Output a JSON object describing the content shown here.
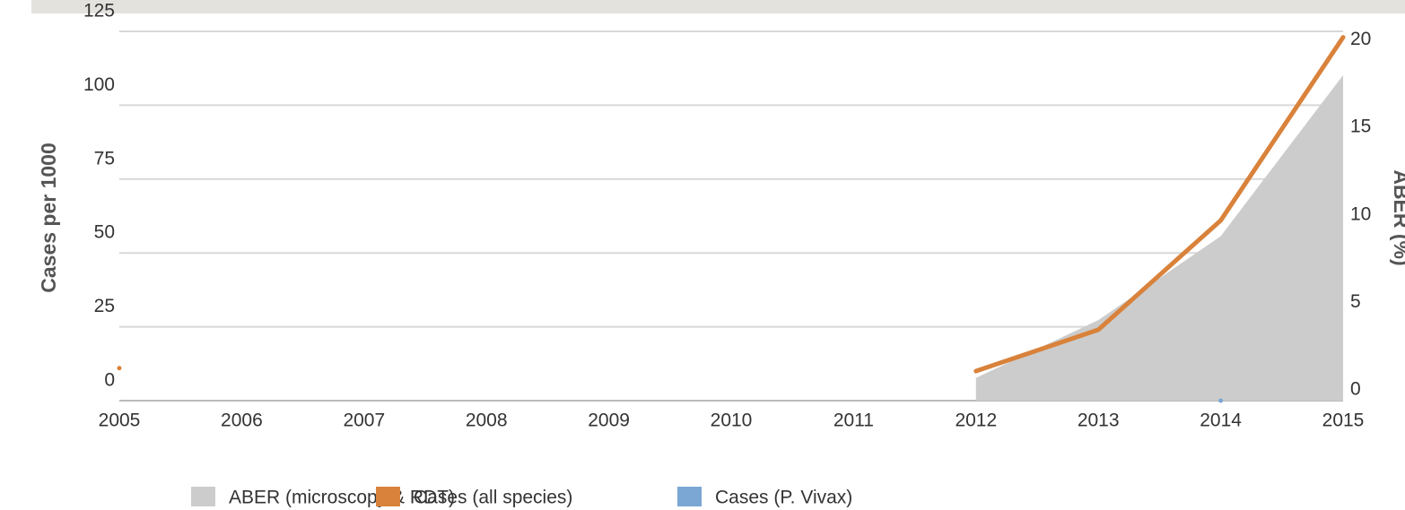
{
  "chart_data": {
    "type": "line",
    "x": [
      2005,
      2006,
      2007,
      2008,
      2009,
      2010,
      2011,
      2012,
      2013,
      2014,
      2015
    ],
    "xlim": [
      2005,
      2015
    ],
    "xticks": [
      2005,
      2006,
      2007,
      2008,
      2009,
      2010,
      2011,
      2012,
      2013,
      2014,
      2015
    ],
    "ylabel": "Cases per 1000",
    "ylim": [
      0,
      125
    ],
    "yticks": [
      0,
      25,
      50,
      75,
      100,
      125
    ],
    "y2label": "ABER (%)",
    "y2lim": [
      0,
      21.1
    ],
    "y2ticks": [
      0,
      5,
      10,
      15,
      20
    ],
    "grid": true,
    "legend": "bottom",
    "series": [
      {
        "name": "ABER (microscopy & RDT)",
        "type": "area",
        "axis": "y2",
        "color": "#cccccc",
        "values": [
          null,
          null,
          null,
          null,
          null,
          null,
          null,
          1.3,
          4.6,
          9.4,
          18.6
        ]
      },
      {
        "name": "Cases (all species)",
        "type": "line",
        "color": "#d9823b",
        "values": [
          11,
          null,
          null,
          null,
          null,
          null,
          null,
          10,
          24,
          61,
          123
        ]
      },
      {
        "name": "Cases (P. Vivax)",
        "type": "line",
        "color": "#7ba7d4",
        "values": [
          null,
          null,
          null,
          null,
          null,
          null,
          null,
          null,
          null,
          0,
          null
        ]
      }
    ]
  }
}
